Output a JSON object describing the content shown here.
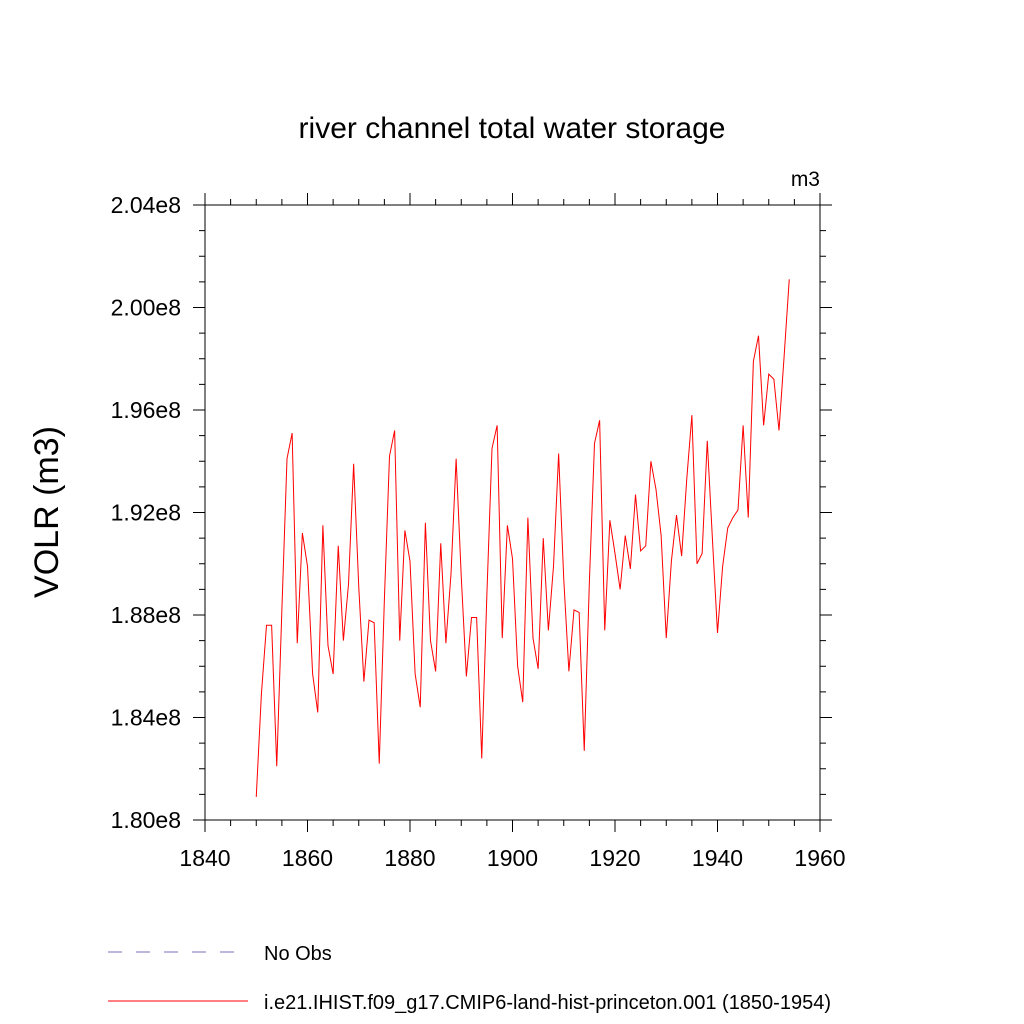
{
  "chart_data": {
    "type": "line",
    "title": "river channel total water storage",
    "units_label": "m3",
    "xlabel": "",
    "ylabel": "VOLR  (m3)",
    "xlim": [
      1840,
      1960
    ],
    "ylim": [
      180000000,
      204000000
    ],
    "x_ticks": [
      1840,
      1860,
      1880,
      1900,
      1920,
      1940,
      1960
    ],
    "x_tick_labels": [
      "1840",
      "1860",
      "1880",
      "1900",
      "1920",
      "1940",
      "1960"
    ],
    "y_ticks": [
      180000000,
      184000000,
      188000000,
      192000000,
      196000000,
      200000000,
      204000000
    ],
    "y_tick_labels": [
      "1.80e8",
      "1.84e8",
      "1.88e8",
      "1.92e8",
      "1.96e8",
      "2.00e8",
      "2.04e8"
    ],
    "grid": false,
    "legend_position": "bottom",
    "series": [
      {
        "name": "No Obs",
        "color": "#7b6fc0",
        "style": "dashed",
        "x": [],
        "y": []
      },
      {
        "name": "i.e21.IHIST.f09_g17.CMIP6-land-hist-princeton.001 (1850-1954)",
        "color": "#ff0000",
        "style": "solid",
        "x": [
          1850,
          1851,
          1852,
          1853,
          1854,
          1855,
          1856,
          1857,
          1858,
          1859,
          1860,
          1861,
          1862,
          1863,
          1864,
          1865,
          1866,
          1867,
          1868,
          1869,
          1870,
          1871,
          1872,
          1873,
          1874,
          1875,
          1876,
          1877,
          1878,
          1879,
          1880,
          1881,
          1882,
          1883,
          1884,
          1885,
          1886,
          1887,
          1888,
          1889,
          1890,
          1891,
          1892,
          1893,
          1894,
          1895,
          1896,
          1897,
          1898,
          1899,
          1900,
          1901,
          1902,
          1903,
          1904,
          1905,
          1906,
          1907,
          1908,
          1909,
          1910,
          1911,
          1912,
          1913,
          1914,
          1915,
          1916,
          1917,
          1918,
          1919,
          1920,
          1921,
          1922,
          1923,
          1924,
          1925,
          1926,
          1927,
          1928,
          1929,
          1930,
          1931,
          1932,
          1933,
          1934,
          1935,
          1936,
          1937,
          1938,
          1939,
          1940,
          1941,
          1942,
          1943,
          1944,
          1945,
          1946,
          1947,
          1948,
          1949,
          1950,
          1951,
          1952,
          1953,
          1954
        ],
        "y": [
          180900000,
          184900000,
          187600000,
          187600000,
          182100000,
          188200000,
          194100000,
          195100000,
          186900000,
          191200000,
          189900000,
          185700000,
          184200000,
          191500000,
          186800000,
          185700000,
          190700000,
          187000000,
          189200000,
          193900000,
          189100000,
          185400000,
          187800000,
          187700000,
          182200000,
          188600000,
          194200000,
          195200000,
          187000000,
          191300000,
          190100000,
          185700000,
          184400000,
          191600000,
          187000000,
          185800000,
          190800000,
          186900000,
          189600000,
          194100000,
          189500000,
          185600000,
          187900000,
          187900000,
          182400000,
          188800000,
          194500000,
          195400000,
          187100000,
          191500000,
          190200000,
          186000000,
          184600000,
          191800000,
          187100000,
          185900000,
          191000000,
          187400000,
          189900000,
          194300000,
          189400000,
          185800000,
          188200000,
          188100000,
          182700000,
          189300000,
          194700000,
          195600000,
          187400000,
          191700000,
          190400000,
          189000000,
          191100000,
          189800000,
          192700000,
          190500000,
          190700000,
          194000000,
          192900000,
          191100000,
          187100000,
          190100000,
          191900000,
          190300000,
          193300000,
          195800000,
          190000000,
          190400000,
          194800000,
          191000000,
          187300000,
          189900000,
          191400000,
          191800000,
          192100000,
          195400000,
          191800000,
          197900000,
          198900000,
          195400000,
          197400000,
          197200000,
          195200000,
          198100000,
          201100000
        ]
      }
    ]
  }
}
